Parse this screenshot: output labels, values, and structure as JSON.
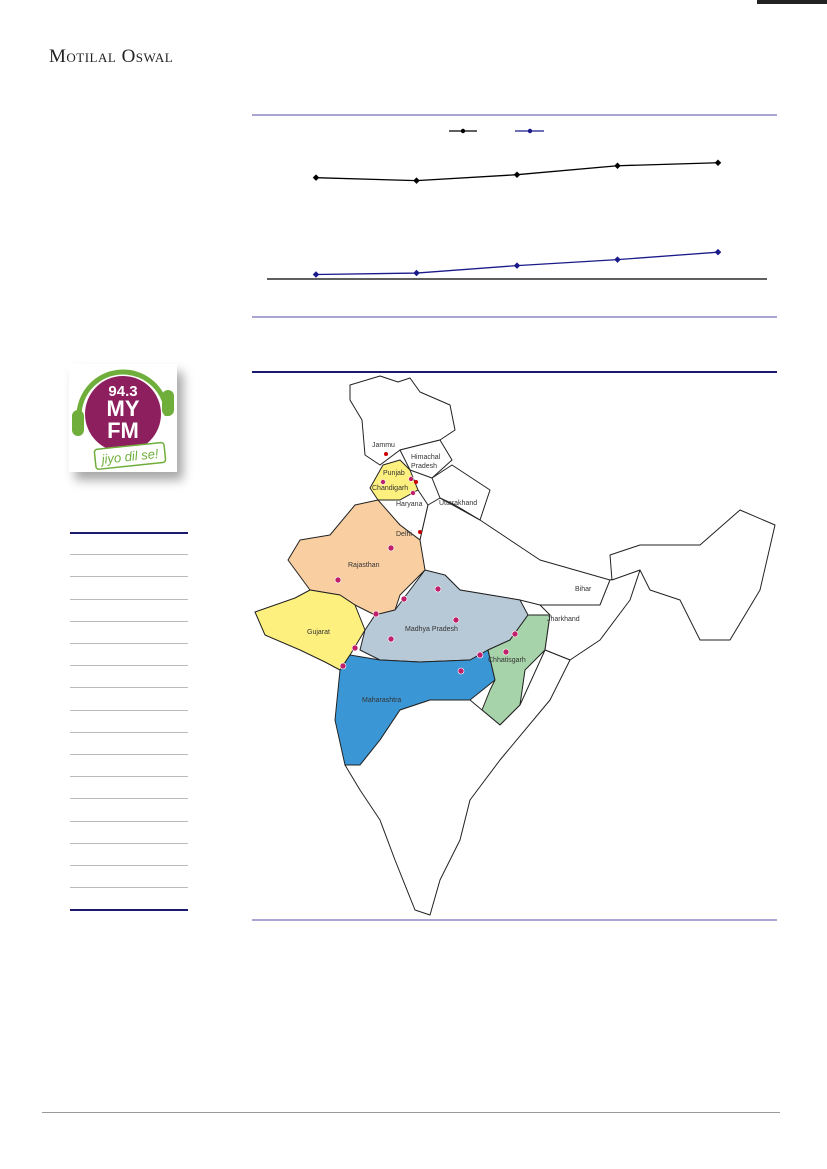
{
  "header": {
    "brand": "Motilal Oswal"
  },
  "logo": {
    "frequency": "94.3",
    "name_line1": "MY",
    "name_line2": "FM",
    "tagline": "jiyo dil se!"
  },
  "colors": {
    "rule_lavender": "#a9a6d4",
    "rule_navy": "#1b1a6e",
    "series1": "#000000",
    "series2": "#1b1a8a",
    "rajasthan": "#f9cfa1",
    "gujarat_punjab": "#fef07e",
    "madhya_pradesh": "#b7c9d7",
    "maharashtra": "#3a96d4",
    "chhattisgarh": "#a6d3a9"
  },
  "chart_data": {
    "type": "line",
    "title": "",
    "xlabel": "",
    "ylabel": "",
    "legend": "top-center",
    "grid": false,
    "ylim": [
      0,
      100
    ],
    "x": [
      1,
      2,
      3,
      4,
      5
    ],
    "series": [
      {
        "values": [
          68,
          66,
          70,
          76,
          78
        ],
        "color": "#000000"
      },
      {
        "values": [
          3,
          4,
          9,
          13,
          18
        ],
        "color": "#1b1a8a"
      }
    ]
  },
  "map": {
    "labels": {
      "jammu": "Jammu",
      "himachal": "Himachal",
      "pradesh": "Pradesh",
      "punjab": "Punjab",
      "chandigarh": "Chandigarh",
      "haryana": "Haryana",
      "uttarakhand": "Uttarakhand",
      "delhi": "Delhi",
      "rajasthan": "Rajasthan",
      "gujarat": "Gujarat",
      "madhya_pradesh": "Madhya Pradesh",
      "maharashtra": "Maharashtra",
      "chhatisgarh": "Chhatisgarh",
      "jharkhand": "Jharkhand",
      "bihar": "Bihar"
    }
  }
}
